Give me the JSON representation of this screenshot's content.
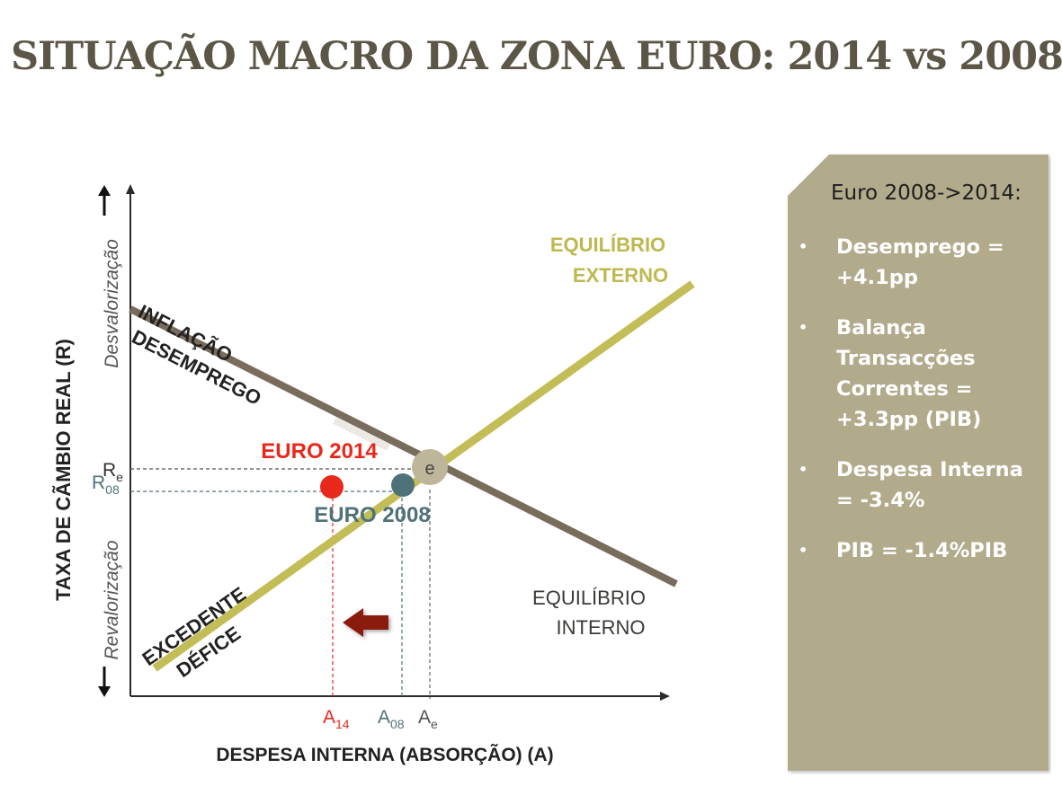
{
  "title": "SITUAÇÃO MACRO DA ZONA EURO: 2014 vs 2008",
  "diagram": {
    "y_axis_label": "TAXA DE CÃMBIO REAL (R)",
    "x_axis_label": "DESPESA INTERNA (ABSORÇÃO) (A)",
    "y_top_label": "Desvalorização",
    "y_bottom_label": "Revalorização",
    "external_line_label": [
      "EQUILÍBRIO",
      "EXTERNO"
    ],
    "internal_line_label": [
      "EQUILÍBRIO",
      "INTERNO"
    ],
    "internal_upper_region": [
      "INFLAÇÃO",
      "DESEMPREGO"
    ],
    "external_lower_region": [
      "EXCEDENTE",
      "DÉFICE"
    ],
    "point_2014_label": "EURO 2014",
    "point_2008_label": "EURO 2008",
    "equilibrium_label": "e",
    "r_e_label": "R",
    "r_e_sub": "e",
    "r_08_label": "R",
    "r_08_sub": "08",
    "a_14_label": "A",
    "a_14_sub": "14",
    "a_08_label": "A",
    "a_08_sub": "08",
    "a_e_label": "A",
    "a_e_sub": "e",
    "colors": {
      "euro2014": "#e8281b",
      "euro2008": "#4f7178",
      "internal_line": "#7a6c5c",
      "external_line": "#c3bd57",
      "equilibrium_point": "#bdb69a",
      "arrow": "#8b1a10",
      "panel": "#b1aa8b"
    }
  },
  "panel": {
    "heading": "Euro 2008->2014:",
    "items": [
      "Desemprego = +4.1pp",
      "Balança Transacções Correntes = +3.3pp (PIB)",
      "Despesa Interna = -3.4%",
      "PIB = -1.4%PIB"
    ]
  }
}
